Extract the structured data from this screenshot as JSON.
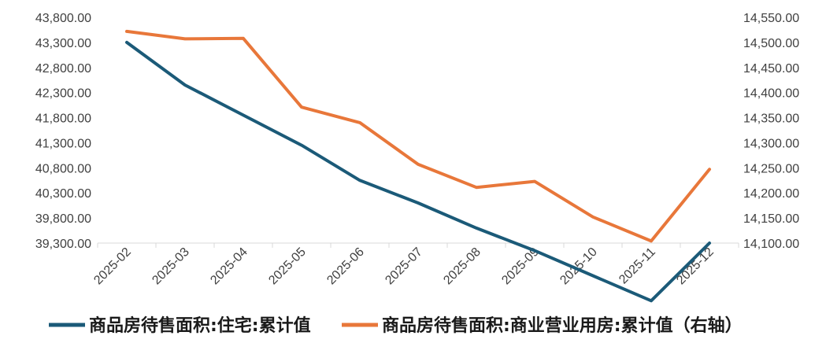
{
  "chart_data": {
    "type": "line",
    "categories": [
      "2025-02",
      "2025-03",
      "2025-04",
      "2025-05",
      "2025-06",
      "2025-07",
      "2025-08",
      "2025-09",
      "2025-10",
      "2025-11",
      "2025-12"
    ],
    "series": [
      {
        "name": "商品房待售面积:住宅:累计值",
        "axis": "left",
        "color": "#1b5a78",
        "values": [
          43300,
          42450,
          41850,
          41250,
          40550,
          40100,
          39600,
          39150,
          38650,
          38150,
          39300
        ]
      },
      {
        "name": "商品房待售面积:商业营业用房:累计值（右轴）",
        "axis": "right",
        "color": "#e8773a",
        "values": [
          14522,
          14507,
          14508,
          14371,
          14340,
          14257,
          14211,
          14223,
          14152,
          14104,
          14247
        ]
      }
    ],
    "y_left": {
      "min": 39300,
      "max": 43800,
      "tick_labels": [
        "43,800.00",
        "43,300.00",
        "42,800.00",
        "42,300.00",
        "41,800.00",
        "41,300.00",
        "40,800.00",
        "40,300.00",
        "39,800.00",
        "39,300.00"
      ]
    },
    "y_right": {
      "min": 14100,
      "max": 14550,
      "tick_labels": [
        "14,550.00",
        "14,500.00",
        "14,450.00",
        "14,400.00",
        "14,350.00",
        "14,300.00",
        "14,250.00",
        "14,200.00",
        "14,150.00",
        "14,100.00"
      ]
    },
    "grid": false,
    "legend_position": "bottom"
  }
}
